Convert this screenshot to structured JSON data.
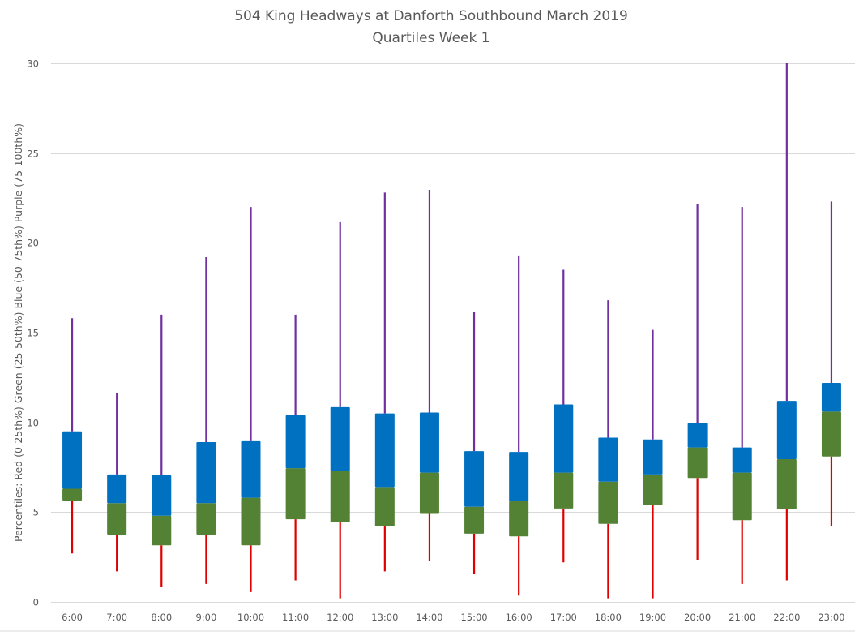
{
  "chart_data": {
    "type": "box",
    "title": "504 King Headways at Danforth Southbound March 2019",
    "subtitle": "Quartiles Week 1",
    "xlabel": "",
    "ylabel": "Percentiles: Red (0-25th%)  Green (25-50th%)  Blue (50-75th%)  Purple (75-100th%)",
    "ylim": [
      0,
      30
    ],
    "yticks": [
      0,
      5,
      10,
      15,
      20,
      25,
      30
    ],
    "grid": true,
    "legend": "none",
    "colors": {
      "lower_whisker": "#E00000",
      "lower_box": "#548235",
      "upper_box": "#0070C0",
      "upper_whisker": "#7030A0"
    },
    "categories": [
      "6:00",
      "7:00",
      "8:00",
      "9:00",
      "10:00",
      "11:00",
      "12:00",
      "13:00",
      "14:00",
      "15:00",
      "16:00",
      "17:00",
      "18:00",
      "19:00",
      "20:00",
      "21:00",
      "22:00",
      "23:00"
    ],
    "series": [
      {
        "name": "min",
        "values": [
          2.7,
          1.7,
          0.85,
          1.0,
          0.55,
          1.2,
          0.2,
          1.7,
          2.3,
          1.55,
          0.35,
          2.2,
          0.2,
          0.2,
          2.35,
          1.0,
          1.2,
          4.2
        ]
      },
      {
        "name": "q1",
        "values": [
          5.65,
          3.75,
          3.15,
          3.75,
          3.15,
          4.6,
          4.45,
          4.2,
          4.95,
          3.8,
          3.65,
          5.2,
          4.35,
          5.4,
          6.9,
          4.55,
          5.15,
          8.1
        ]
      },
      {
        "name": "median",
        "values": [
          6.3,
          5.5,
          4.8,
          5.5,
          5.8,
          7.45,
          7.3,
          6.4,
          7.2,
          5.3,
          5.6,
          7.2,
          6.7,
          7.1,
          8.6,
          7.2,
          7.95,
          10.6
        ]
      },
      {
        "name": "q3",
        "values": [
          9.5,
          7.1,
          7.05,
          8.9,
          8.95,
          10.4,
          10.85,
          10.5,
          10.55,
          8.4,
          8.35,
          11.0,
          9.15,
          9.05,
          9.95,
          8.6,
          11.2,
          12.2
        ]
      },
      {
        "name": "max",
        "values": [
          15.8,
          11.65,
          16.0,
          19.2,
          22.0,
          16.0,
          21.15,
          22.8,
          22.95,
          16.15,
          19.3,
          18.5,
          16.8,
          15.15,
          22.15,
          22.0,
          30.0,
          22.3
        ]
      }
    ]
  }
}
